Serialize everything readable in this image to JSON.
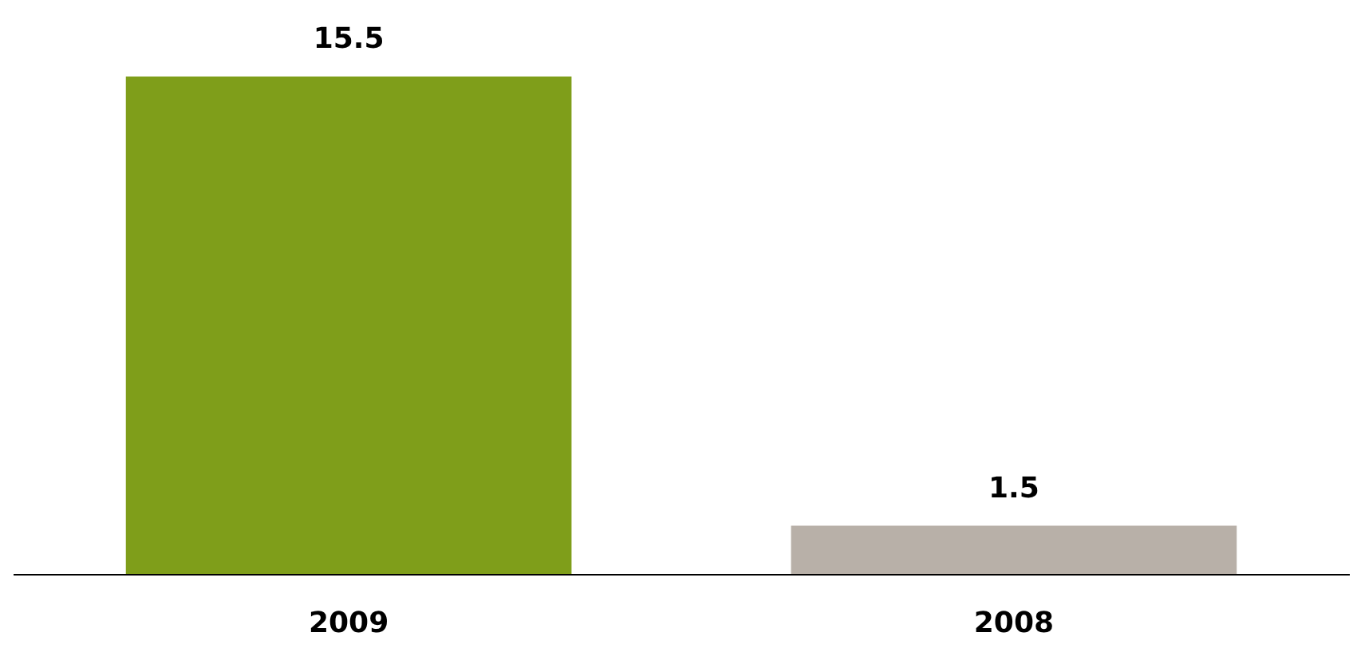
{
  "chart_data": {
    "type": "bar",
    "categories": [
      "2009",
      "2008"
    ],
    "values": [
      15.5,
      1.5
    ],
    "colors": [
      "#7f9e1a",
      "#b8b0a8"
    ],
    "data_labels": true
  }
}
